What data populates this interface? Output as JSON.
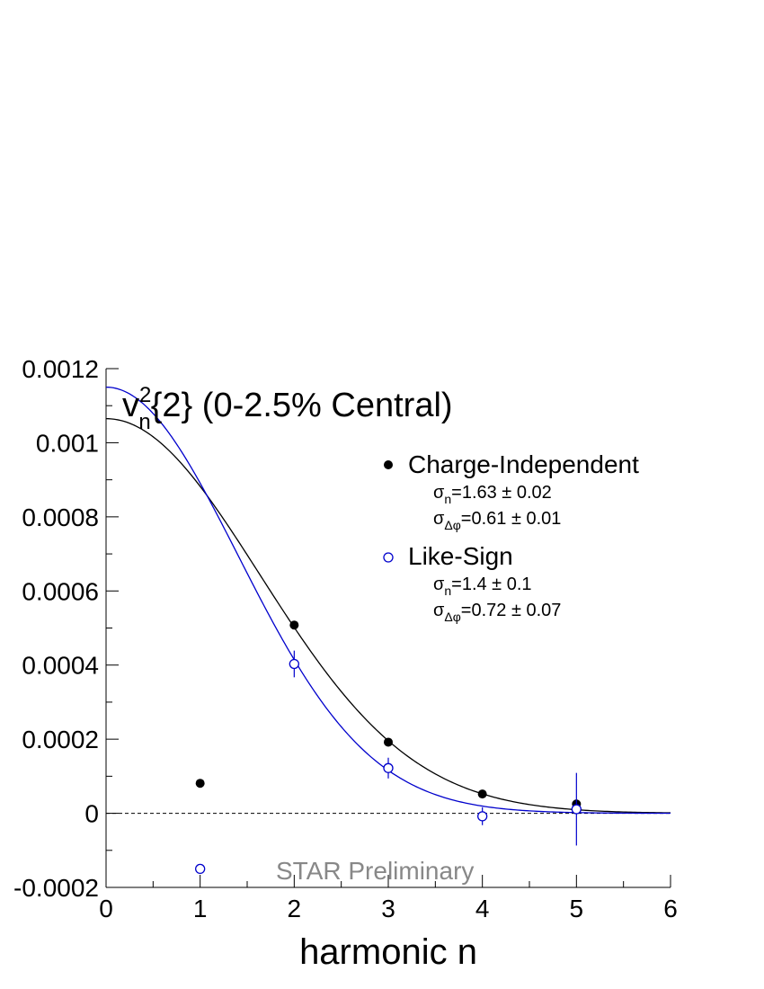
{
  "chart_data": {
    "type": "scatter",
    "title": {
      "prefix": "v",
      "sup": "2",
      "sub": "n",
      "rest": "{2} (0-2.5% Central)"
    },
    "xlabel": "harmonic n",
    "ylabel": "",
    "xlim": [
      0,
      6
    ],
    "ylim": [
      -0.0002,
      0.0012
    ],
    "x_ticks": [
      "0",
      "1",
      "2",
      "3",
      "4",
      "5",
      "6"
    ],
    "y_ticks": [
      "-0.0002",
      "0",
      "0.0002",
      "0.0004",
      "0.0006",
      "0.0008",
      "0.001",
      "0.0012"
    ],
    "grid": false,
    "zero_line": true,
    "legend_position": "top-right",
    "watermark": "STAR Preliminary",
    "series": [
      {
        "name": "Charge-Independent",
        "marker": "filled-circle",
        "color": "#000000",
        "x": [
          1,
          2,
          3,
          4,
          5
        ],
        "y": [
          8.1e-05,
          0.000508,
          0.000192,
          5.2e-05,
          2.5e-05
        ],
        "yerr": [
          4e-06,
          6e-06,
          5e-06,
          5e-06,
          8e-06
        ],
        "params": [
          {
            "sym": "σ",
            "sub": "n",
            "text": "=1.63 ± 0.02"
          },
          {
            "sym": "σ",
            "sub": "Δφ",
            "text": "=0.61 ± 0.01"
          }
        ],
        "fit": {
          "amplitude": 0.001065,
          "sigma": 1.63
        }
      },
      {
        "name": "Like-Sign",
        "marker": "open-circle",
        "color": "#0000cc",
        "x": [
          1,
          2,
          3,
          4,
          5
        ],
        "y": [
          -0.00015,
          0.000403,
          0.000122,
          -8e-06,
          1.1e-05
        ],
        "yerr": [
          1.2e-05,
          3.6e-05,
          2.8e-05,
          2.4e-05,
          9.8e-05
        ],
        "params": [
          {
            "sym": "σ",
            "sub": "n",
            "text": "=1.4 ± 0.1"
          },
          {
            "sym": "σ",
            "sub": "Δφ",
            "text": "=0.72 ± 0.07"
          }
        ],
        "fit": {
          "amplitude": 0.00115,
          "sigma": 1.4
        }
      }
    ]
  }
}
